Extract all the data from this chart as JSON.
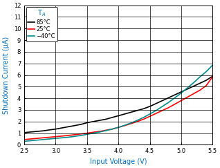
{
  "title": "",
  "xlabel": "Input Voltage (V)",
  "ylabel": "Shutdown Current (μA)",
  "xlim": [
    2.5,
    5.5
  ],
  "ylim": [
    0,
    12
  ],
  "xticks": [
    2.5,
    3.0,
    3.5,
    4.0,
    4.5,
    5.0,
    5.5
  ],
  "yticks": [
    0,
    1,
    2,
    3,
    4,
    5,
    6,
    7,
    8,
    9,
    10,
    11,
    12
  ],
  "legend_title": "T$_A$",
  "legend_title_color": "#0070C0",
  "curves": [
    {
      "label": "85°C",
      "color": "#000000",
      "x": [
        2.5,
        2.6,
        2.7,
        2.8,
        2.9,
        3.0,
        3.1,
        3.2,
        3.3,
        3.4,
        3.5,
        3.6,
        3.7,
        3.8,
        3.9,
        4.0,
        4.1,
        4.2,
        4.3,
        4.4,
        4.5,
        4.6,
        4.7,
        4.8,
        4.9,
        5.0,
        5.1,
        5.2,
        5.3,
        5.4,
        5.5
      ],
      "y": [
        1.05,
        1.1,
        1.15,
        1.2,
        1.28,
        1.35,
        1.45,
        1.55,
        1.65,
        1.75,
        1.9,
        2.0,
        2.1,
        2.2,
        2.35,
        2.5,
        2.65,
        2.8,
        2.95,
        3.1,
        3.3,
        3.55,
        3.8,
        4.05,
        4.3,
        4.55,
        4.8,
        5.05,
        5.3,
        5.55,
        5.9
      ]
    },
    {
      "label": "25°C",
      "color": "#FF0000",
      "x": [
        2.5,
        2.6,
        2.7,
        2.8,
        2.9,
        3.0,
        3.1,
        3.2,
        3.3,
        3.4,
        3.5,
        3.6,
        3.7,
        3.8,
        3.9,
        4.0,
        4.1,
        4.2,
        4.3,
        4.4,
        4.5,
        4.6,
        4.7,
        4.8,
        4.9,
        5.0,
        5.1,
        5.2,
        5.3,
        5.4,
        5.5
      ],
      "y": [
        0.45,
        0.5,
        0.55,
        0.6,
        0.65,
        0.7,
        0.75,
        0.8,
        0.87,
        0.93,
        1.0,
        1.08,
        1.15,
        1.25,
        1.35,
        1.5,
        1.65,
        1.82,
        2.0,
        2.2,
        2.45,
        2.7,
        2.95,
        3.2,
        3.5,
        3.8,
        4.1,
        4.4,
        4.7,
        5.1,
        5.85
      ]
    },
    {
      "label": "−40°C",
      "color": "#008B8B",
      "x": [
        2.5,
        2.6,
        2.7,
        2.8,
        2.9,
        3.0,
        3.1,
        3.2,
        3.3,
        3.4,
        3.5,
        3.6,
        3.7,
        3.8,
        3.9,
        4.0,
        4.1,
        4.2,
        4.3,
        4.4,
        4.5,
        4.6,
        4.7,
        4.8,
        4.9,
        5.0,
        5.1,
        5.2,
        5.3,
        5.4,
        5.5
      ],
      "y": [
        0.3,
        0.35,
        0.4,
        0.45,
        0.5,
        0.55,
        0.6,
        0.65,
        0.72,
        0.8,
        0.9,
        1.0,
        1.1,
        1.22,
        1.35,
        1.5,
        1.68,
        1.87,
        2.1,
        2.35,
        2.65,
        2.95,
        3.3,
        3.65,
        4.05,
        4.45,
        4.9,
        5.35,
        5.85,
        6.3,
        6.85
      ]
    }
  ],
  "label_color": "#0070C0",
  "tick_label_color": "#000000",
  "bg_color": "#FFFFFF",
  "grid_color": "#000000",
  "xlabel_fontsize": 7,
  "ylabel_fontsize": 7,
  "tick_fontsize": 6,
  "legend_fontsize": 6,
  "legend_title_fontsize": 7,
  "linewidth": 1.2
}
